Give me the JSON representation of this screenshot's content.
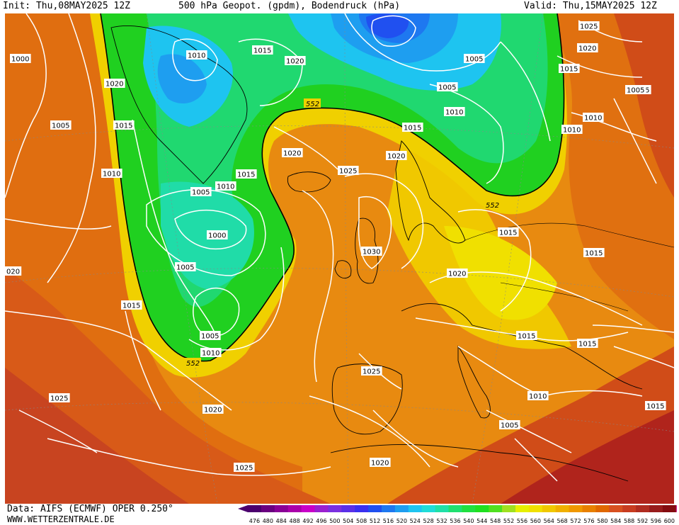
{
  "header": {
    "init": "Init: Thu,08MAY2025 12Z",
    "title": "500 hPa Geopot. (gpdm), Bodendruck (hPa)",
    "valid": "Valid: Thu,15MAY2025 12Z"
  },
  "footer": {
    "data_source": "Data: AIFS (ECMWF) OPER 0.250°",
    "website": "WWW.WETTERZENTRALE.DE"
  },
  "legend": {
    "values": [
      "476",
      "480",
      "484",
      "488",
      "492",
      "496",
      "500",
      "504",
      "508",
      "512",
      "516",
      "520",
      "524",
      "528",
      "532",
      "536",
      "540",
      "544",
      "548",
      "552",
      "556",
      "560",
      "564",
      "568",
      "572",
      "576",
      "580",
      "584",
      "588",
      "592",
      "596",
      "600"
    ],
    "colors": [
      "#4b006e",
      "#6a0080",
      "#8a0096",
      "#aa00aa",
      "#c800c8",
      "#9a20d0",
      "#7a30e0",
      "#5a30e8",
      "#3a30f0",
      "#2050f0",
      "#1e78f0",
      "#1e9ef0",
      "#1ec4f0",
      "#20dcd8",
      "#20e0a8",
      "#20e070",
      "#20e040",
      "#20e020",
      "#50e020",
      "#a0e020",
      "#e6f000",
      "#f0e000",
      "#f0c800",
      "#f0b000",
      "#f09800",
      "#e88000",
      "#e06800",
      "#d85020",
      "#c83c20",
      "#b02c20",
      "#981c1c",
      "#840c10"
    ]
  },
  "contour_label_552": "552",
  "isobar_labels": [
    {
      "id": "a",
      "text": "1000"
    },
    {
      "id": "b",
      "text": "1010"
    },
    {
      "id": "c",
      "text": "1015"
    },
    {
      "id": "d",
      "text": "1020"
    },
    {
      "id": "e",
      "text": "1005"
    },
    {
      "id": "f",
      "text": "1025"
    },
    {
      "id": "g",
      "text": "1020"
    },
    {
      "id": "h",
      "text": "1015"
    },
    {
      "id": "i",
      "text": "1005"
    },
    {
      "id": "j",
      "text": "1015"
    },
    {
      "id": "k",
      "text": "1005"
    },
    {
      "id": "l",
      "text": "1020"
    },
    {
      "id": "m",
      "text": "1015"
    },
    {
      "id": "n",
      "text": "1005"
    },
    {
      "id": "o",
      "text": "1010"
    },
    {
      "id": "p",
      "text": "1010"
    },
    {
      "id": "q",
      "text": "1010"
    },
    {
      "id": "r",
      "text": "1020"
    },
    {
      "id": "s",
      "text": "1015"
    },
    {
      "id": "t",
      "text": "1020"
    },
    {
      "id": "u",
      "text": "1015"
    },
    {
      "id": "v",
      "text": "1025"
    },
    {
      "id": "w",
      "text": "1010"
    },
    {
      "id": "x",
      "text": "1005"
    },
    {
      "id": "y",
      "text": "1010"
    },
    {
      "id": "z",
      "text": "1000"
    },
    {
      "id": "aa",
      "text": "1005"
    },
    {
      "id": "ab",
      "text": "1030"
    },
    {
      "id": "ac",
      "text": "1015"
    },
    {
      "id": "ad",
      "text": "1015"
    },
    {
      "id": "ae",
      "text": "1020"
    },
    {
      "id": "af",
      "text": "1015"
    },
    {
      "id": "ag",
      "text": "1005"
    },
    {
      "id": "ah",
      "text": "1010"
    },
    {
      "id": "ai",
      "text": "1015"
    },
    {
      "id": "aj",
      "text": "1015"
    },
    {
      "id": "ak",
      "text": "1025"
    },
    {
      "id": "al",
      "text": "1025"
    },
    {
      "id": "am",
      "text": "1020"
    },
    {
      "id": "an",
      "text": "1010"
    },
    {
      "id": "ao",
      "text": "1015"
    },
    {
      "id": "ap",
      "text": "1005"
    },
    {
      "id": "aq",
      "text": "1025"
    },
    {
      "id": "ar",
      "text": "1020"
    },
    {
      "id": "as",
      "text": "020"
    }
  ]
}
